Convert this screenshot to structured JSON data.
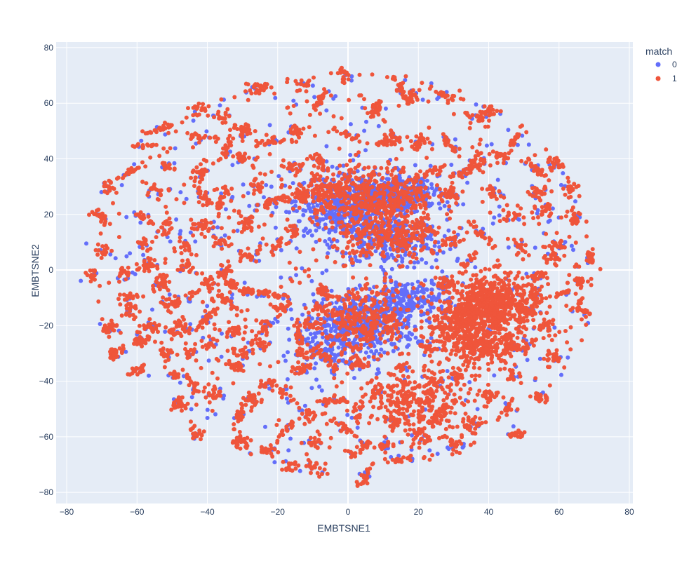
{
  "chart_data": {
    "type": "scatter",
    "xlabel": "EMBTSNE1",
    "ylabel": "EMBTSNE2",
    "xlim": [
      -83,
      81
    ],
    "ylim": [
      -84,
      82
    ],
    "x_ticks": [
      -80,
      -60,
      -40,
      -20,
      0,
      20,
      40,
      60,
      80
    ],
    "y_ticks": [
      -80,
      -60,
      -40,
      -20,
      0,
      20,
      40,
      60,
      80
    ],
    "x_tick_labels": [
      "−80",
      "−60",
      "−40",
      "−20",
      "0",
      "20",
      "40",
      "60",
      "80"
    ],
    "y_tick_labels": [
      "−80",
      "−60",
      "−40",
      "−20",
      "0",
      "20",
      "40",
      "60",
      "80"
    ],
    "grid": true,
    "legend": {
      "title": "match",
      "position": "top-right",
      "entries": [
        {
          "label": "0",
          "color": "#636efa"
        },
        {
          "label": "1",
          "color": "#ef553b"
        }
      ]
    },
    "series": [
      {
        "name": "0",
        "color": "#636efa",
        "clusters": [
          {
            "cx": 5,
            "cy": 25,
            "sx": 10,
            "sy": 5,
            "n": 420
          },
          {
            "cx": 12,
            "cy": 10,
            "sx": 8,
            "sy": 4,
            "n": 260
          },
          {
            "cx": -3,
            "cy": 20,
            "sx": 5,
            "sy": 4,
            "n": 150
          },
          {
            "cx": 5,
            "cy": -20,
            "sx": 7,
            "sy": 6,
            "n": 320
          },
          {
            "cx": 17,
            "cy": -12,
            "sx": 6,
            "sy": 5,
            "n": 220
          },
          {
            "cx": -5,
            "cy": -25,
            "sx": 5,
            "sy": 5,
            "n": 160
          },
          {
            "cx": 14,
            "cy": 28,
            "sx": 6,
            "sy": 3,
            "n": 140
          }
        ],
        "scatter_n": 250
      },
      {
        "name": "1",
        "color": "#ef553b",
        "clusters": [
          {
            "cx": 5,
            "cy": 27,
            "sx": 10,
            "sy": 5,
            "n": 480
          },
          {
            "cx": 12,
            "cy": 12,
            "sx": 8,
            "sy": 4,
            "n": 260
          },
          {
            "cx": 5,
            "cy": -18,
            "sx": 7,
            "sy": 6,
            "n": 300
          },
          {
            "cx": 42,
            "cy": -12,
            "sx": 6,
            "sy": 5,
            "n": 520
          },
          {
            "cx": 33,
            "cy": -20,
            "sx": 5,
            "sy": 5,
            "n": 320
          },
          {
            "cx": 38,
            "cy": -28,
            "sx": 5,
            "sy": 3,
            "n": 180
          },
          {
            "cx": 15,
            "cy": -45,
            "sx": 5,
            "sy": 5,
            "n": 120
          },
          {
            "cx": 25,
            "cy": -50,
            "sx": 6,
            "sy": 5,
            "n": 160
          }
        ],
        "small_clusters": [
          [
            -73,
            -2
          ],
          [
            -68,
            -21
          ],
          [
            -70,
            19
          ],
          [
            -69,
            7
          ],
          [
            -68,
            30
          ],
          [
            -63,
            -10
          ],
          [
            -63,
            -1
          ],
          [
            -62,
            -15
          ],
          [
            -61,
            36
          ],
          [
            -60,
            -36
          ],
          [
            -59,
            -25
          ],
          [
            -58,
            45
          ],
          [
            -58,
            19
          ],
          [
            -58,
            9
          ],
          [
            -57,
            2
          ],
          [
            -56,
            -20
          ],
          [
            -55,
            29
          ],
          [
            -53,
            51
          ],
          [
            -53,
            -5
          ],
          [
            -52,
            38
          ],
          [
            -52,
            15
          ],
          [
            -51,
            -12
          ],
          [
            -50,
            -22
          ],
          [
            -49,
            -38
          ],
          [
            -48,
            -48
          ],
          [
            -47,
            10
          ],
          [
            -46,
            1
          ],
          [
            -45,
            -30
          ],
          [
            -44,
            -41
          ],
          [
            -43,
            57
          ],
          [
            -43,
            -59
          ],
          [
            -42,
            48
          ],
          [
            -42,
            35
          ],
          [
            -41,
            26
          ],
          [
            -41,
            16
          ],
          [
            -40,
            -4
          ],
          [
            -40,
            -17
          ],
          [
            -39,
            -27
          ],
          [
            -38,
            -45
          ],
          [
            -36,
            55
          ],
          [
            -35,
            43
          ],
          [
            -35,
            27
          ],
          [
            -35,
            -1
          ],
          [
            -34,
            -12
          ],
          [
            -33,
            -22
          ],
          [
            -32,
            -35
          ],
          [
            -31,
            -52
          ],
          [
            -31,
            -62
          ],
          [
            -30,
            50
          ],
          [
            -30,
            40
          ],
          [
            -29,
            17
          ],
          [
            -28,
            5
          ],
          [
            -27,
            -8
          ],
          [
            -26,
            66
          ],
          [
            -26,
            30
          ],
          [
            -25,
            -27
          ],
          [
            -24,
            -65
          ],
          [
            -23,
            -41
          ],
          [
            -22,
            46
          ],
          [
            -21,
            25
          ],
          [
            -20,
            9
          ],
          [
            -19,
            -14
          ],
          [
            -18,
            -44
          ],
          [
            -18,
            -58
          ],
          [
            -17,
            -71
          ],
          [
            -15,
            50
          ],
          [
            -15,
            37
          ],
          [
            -14,
            -24
          ],
          [
            -13,
            -36
          ],
          [
            -12,
            67
          ],
          [
            -11,
            -52
          ],
          [
            -10,
            -62
          ],
          [
            -9,
            -71
          ],
          [
            -8,
            61
          ],
          [
            -7,
            -8
          ],
          [
            -6,
            -32
          ],
          [
            -4,
            -47
          ],
          [
            -2,
            -56
          ],
          [
            -1,
            70
          ],
          [
            1,
            48
          ],
          [
            2,
            -34
          ],
          [
            3,
            -52
          ],
          [
            4,
            -64
          ],
          [
            5,
            -74
          ],
          [
            8,
            58
          ],
          [
            9,
            -43
          ],
          [
            10,
            -63
          ],
          [
            12,
            47
          ],
          [
            13,
            -55
          ],
          [
            15,
            65
          ],
          [
            16,
            -34
          ],
          [
            17,
            -68
          ],
          [
            18,
            62
          ],
          [
            20,
            46
          ],
          [
            21,
            -60
          ],
          [
            24,
            -40
          ],
          [
            27,
            63
          ],
          [
            29,
            45
          ],
          [
            30,
            -63
          ],
          [
            33,
            35
          ],
          [
            35,
            -56
          ],
          [
            36,
            55
          ],
          [
            37,
            39
          ],
          [
            40,
            57
          ],
          [
            42,
            28
          ],
          [
            44,
            41
          ],
          [
            45,
            -50
          ],
          [
            46,
            19
          ],
          [
            47,
            -38
          ],
          [
            48,
            48
          ],
          [
            48,
            -59
          ],
          [
            49,
            8
          ],
          [
            50,
            -27
          ],
          [
            53,
            37
          ],
          [
            54,
            28
          ],
          [
            55,
            -46
          ],
          [
            56,
            22
          ],
          [
            58,
            -31
          ],
          [
            59,
            38
          ],
          [
            60,
            9
          ],
          [
            62,
            -8
          ],
          [
            63,
            29
          ],
          [
            64,
            19
          ],
          [
            67,
            -15
          ],
          [
            69,
            4
          ],
          [
            -66,
            -30
          ],
          [
            -47,
            -20
          ],
          [
            -22,
            -9
          ],
          [
            -10,
            -20
          ],
          [
            -5,
            -15
          ],
          [
            -16,
            14
          ],
          [
            -13,
            27
          ],
          [
            -8,
            39
          ],
          [
            -5,
            30
          ],
          [
            25,
            36
          ],
          [
            28,
            27
          ],
          [
            30,
            10
          ],
          [
            34,
            2
          ],
          [
            37,
            14
          ],
          [
            51,
            -15
          ],
          [
            56,
            -20
          ],
          [
            54,
            -2
          ],
          [
            -27,
            -47
          ],
          [
            -33,
            -5
          ],
          [
            -36,
            10
          ],
          [
            -46,
            -10
          ],
          [
            -52,
            -30
          ],
          [
            -24,
            -20
          ],
          [
            -30,
            -30
          ],
          [
            -12,
            -30
          ],
          [
            22,
            15
          ],
          [
            28,
            -5
          ],
          [
            23,
            -28
          ],
          [
            31,
            -38
          ],
          [
            40,
            -45
          ],
          [
            46,
            -28
          ],
          [
            53,
            -8
          ],
          [
            58,
            5
          ],
          [
            66,
            -4
          ]
        ],
        "scatter_n": 600
      }
    ]
  }
}
